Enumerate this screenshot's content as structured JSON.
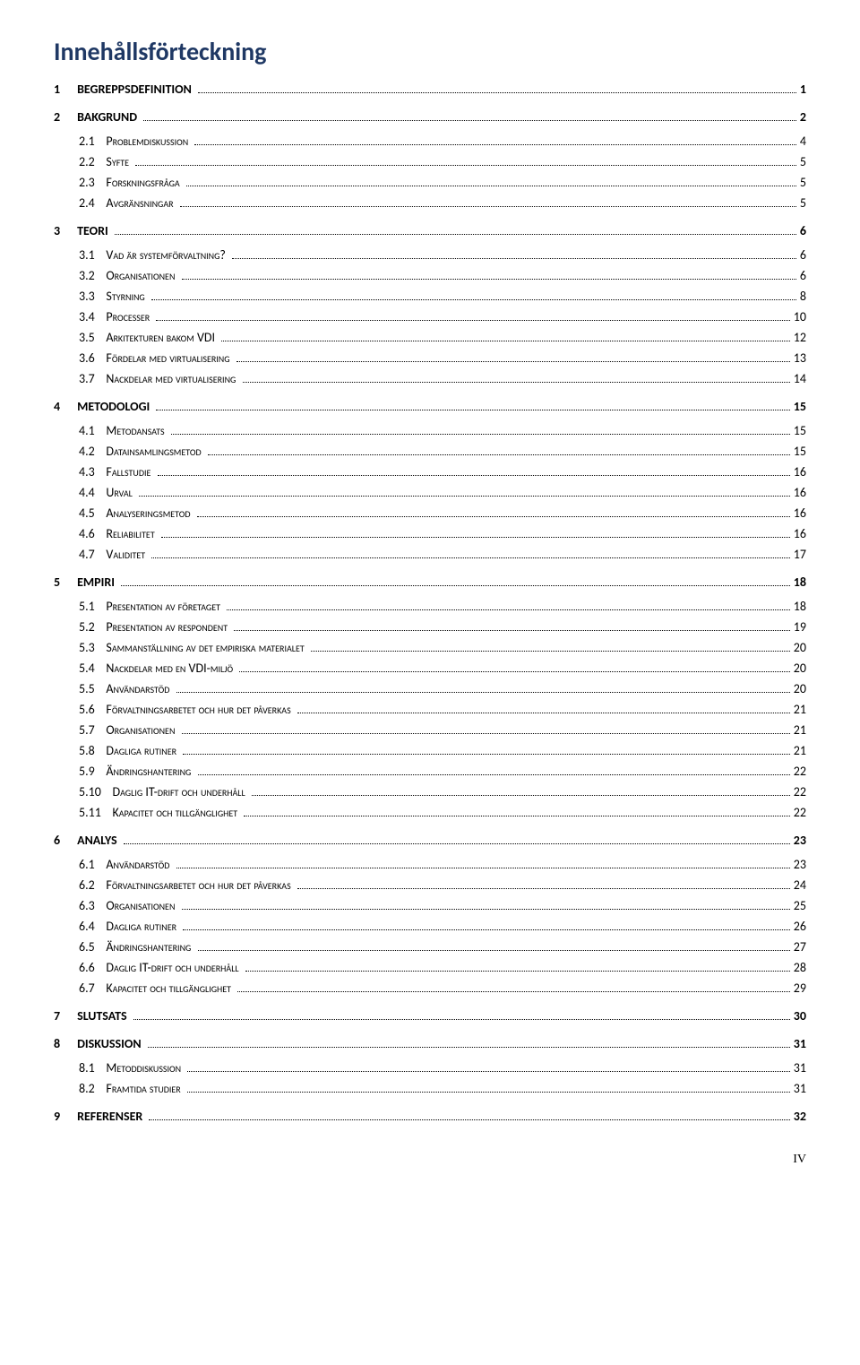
{
  "title": "Innehållsförteckning",
  "footer": "IV",
  "toc": [
    {
      "level": 1,
      "num": "1",
      "text": "BEGREPPSDEFINITION",
      "page": "1"
    },
    {
      "level": 1,
      "num": "2",
      "text": "BAKGRUND",
      "page": "2"
    },
    {
      "level": 2,
      "num": "2.1",
      "text": "Problemdiskussion",
      "page": "4"
    },
    {
      "level": 2,
      "num": "2.2",
      "text": "Syfte",
      "page": "5"
    },
    {
      "level": 2,
      "num": "2.3",
      "text": "Forskningsfråga",
      "page": "5"
    },
    {
      "level": 2,
      "num": "2.4",
      "text": "Avgränsningar",
      "page": "5"
    },
    {
      "level": 1,
      "num": "3",
      "text": "TEORI",
      "page": "6"
    },
    {
      "level": 2,
      "num": "3.1",
      "text": "Vad är systemförvaltning?",
      "page": "6"
    },
    {
      "level": 2,
      "num": "3.2",
      "text": "Organisationen",
      "page": "6"
    },
    {
      "level": 2,
      "num": "3.3",
      "text": "Styrning",
      "page": "8"
    },
    {
      "level": 2,
      "num": "3.4",
      "text": "Processer",
      "page": "10"
    },
    {
      "level": 2,
      "num": "3.5",
      "text": "Arkitekturen bakom VDI",
      "page": "12"
    },
    {
      "level": 2,
      "num": "3.6",
      "text": "Fördelar med virtualisering",
      "page": "13"
    },
    {
      "level": 2,
      "num": "3.7",
      "text": "Nackdelar med virtualisering",
      "page": "14"
    },
    {
      "level": 1,
      "num": "4",
      "text": "METODOLOGI",
      "page": "15"
    },
    {
      "level": 2,
      "num": "4.1",
      "text": "Metodansats",
      "page": "15"
    },
    {
      "level": 2,
      "num": "4.2",
      "text": "Datainsamlingsmetod",
      "page": "15"
    },
    {
      "level": 2,
      "num": "4.3",
      "text": "Fallstudie",
      "page": "16"
    },
    {
      "level": 2,
      "num": "4.4",
      "text": "Urval",
      "page": "16"
    },
    {
      "level": 2,
      "num": "4.5",
      "text": "Analyseringsmetod",
      "page": "16"
    },
    {
      "level": 2,
      "num": "4.6",
      "text": "Reliabilitet",
      "page": "16"
    },
    {
      "level": 2,
      "num": "4.7",
      "text": "Validitet",
      "page": "17"
    },
    {
      "level": 1,
      "num": "5",
      "text": "EMPIRI",
      "page": "18"
    },
    {
      "level": 2,
      "num": "5.1",
      "text": "Presentation av företaget",
      "page": "18"
    },
    {
      "level": 2,
      "num": "5.2",
      "text": "Presentation av respondent",
      "page": "19"
    },
    {
      "level": 2,
      "num": "5.3",
      "text": "Sammanställning av det empiriska materialet",
      "page": "20"
    },
    {
      "level": 2,
      "num": "5.4",
      "text": "Nackdelar med en VDI-miljö",
      "page": "20"
    },
    {
      "level": 2,
      "num": "5.5",
      "text": "Användarstöd",
      "page": "20"
    },
    {
      "level": 2,
      "num": "5.6",
      "text": "Förvaltningsarbetet och hur det påverkas",
      "page": "21"
    },
    {
      "level": 2,
      "num": "5.7",
      "text": "Organisationen",
      "page": "21"
    },
    {
      "level": 2,
      "num": "5.8",
      "text": "Dagliga rutiner",
      "page": "21"
    },
    {
      "level": 2,
      "num": "5.9",
      "text": "Ändringshantering",
      "page": "22"
    },
    {
      "level": 2,
      "num": "5.10",
      "text": "Daglig IT-drift och underhåll",
      "page": "22"
    },
    {
      "level": 2,
      "num": "5.11",
      "text": "Kapacitet och tillgänglighet",
      "page": "22"
    },
    {
      "level": 1,
      "num": "6",
      "text": "ANALYS",
      "page": "23"
    },
    {
      "level": 2,
      "num": "6.1",
      "text": "Användarstöd",
      "page": "23"
    },
    {
      "level": 2,
      "num": "6.2",
      "text": "Förvaltningsarbetet och hur det påverkas",
      "page": "24"
    },
    {
      "level": 2,
      "num": "6.3",
      "text": "Organisationen",
      "page": "25"
    },
    {
      "level": 2,
      "num": "6.4",
      "text": "Dagliga rutiner",
      "page": "26"
    },
    {
      "level": 2,
      "num": "6.5",
      "text": "Ändringshantering",
      "page": "27"
    },
    {
      "level": 2,
      "num": "6.6",
      "text": "Daglig IT-drift och underhåll",
      "page": "28"
    },
    {
      "level": 2,
      "num": "6.7",
      "text": "Kapacitet och tillgänglighet",
      "page": "29"
    },
    {
      "level": 1,
      "num": "7",
      "text": "SLUTSATS",
      "page": "30"
    },
    {
      "level": 1,
      "num": "8",
      "text": "DISKUSSION",
      "page": "31"
    },
    {
      "level": 2,
      "num": "8.1",
      "text": "Metoddiskussion",
      "page": "31"
    },
    {
      "level": 2,
      "num": "8.2",
      "text": "Framtida studier",
      "page": "31"
    },
    {
      "level": 1,
      "num": "9",
      "text": "REFERENSER",
      "page": "32"
    }
  ]
}
